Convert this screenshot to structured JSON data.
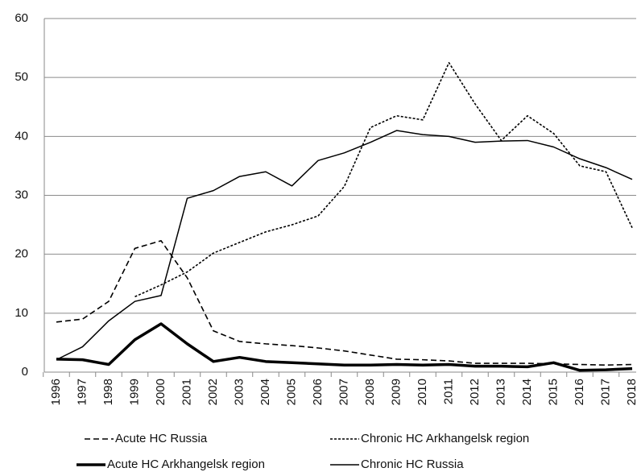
{
  "chart_data": {
    "type": "line",
    "categories": [
      "1996",
      "1997",
      "1998",
      "1999",
      "2000",
      "2001",
      "2002",
      "2003",
      "2004",
      "2005",
      "2006",
      "2007",
      "2008",
      "2009",
      "2010",
      "2011",
      "2012",
      "2013",
      "2014",
      "2015",
      "2016",
      "2017",
      "2018"
    ],
    "series": [
      {
        "name": "Acute HC Russia",
        "color": "#000000",
        "style": "dashed",
        "values": [
          8.5,
          9,
          12,
          21,
          22.3,
          16,
          7,
          5.2,
          4.8,
          4.5,
          4.1,
          3.6,
          2.9,
          2.2,
          2.1,
          1.9,
          1.5,
          1.5,
          1.5,
          1.4,
          1.3,
          1.2,
          1.3
        ]
      },
      {
        "name": "Chronic HC Arkhangelsk region",
        "color": "#000000",
        "style": "dotted",
        "values": [
          null,
          null,
          null,
          12.8,
          14.8,
          17,
          20.2,
          22,
          23.8,
          25,
          26.5,
          31.5,
          41.5,
          43.5,
          42.8,
          52.5,
          45.5,
          39.3,
          43.5,
          40.5,
          35,
          34,
          24.5
        ]
      },
      {
        "name": "Acute HC Arkhangelsk region",
        "color": "#000000",
        "style": "thick",
        "values": [
          2.2,
          2.1,
          1.3,
          5.5,
          8.2,
          4.8,
          1.8,
          2.5,
          1.8,
          1.6,
          1.4,
          1.2,
          1.2,
          1.3,
          1.2,
          1.3,
          1.0,
          1.0,
          0.9,
          1.6,
          0.3,
          0.4,
          0.6
        ]
      },
      {
        "name": "Chronic HC Russia",
        "color": "#000000",
        "style": "thin",
        "values": [
          2.1,
          4.3,
          8.7,
          12,
          13,
          29.5,
          30.8,
          33.2,
          34,
          31.6,
          35.9,
          37.2,
          39,
          41,
          40.3,
          40,
          39,
          39.2,
          39.3,
          38.2,
          36.2,
          34.7,
          32.7
        ]
      }
    ],
    "ylim": [
      0,
      60
    ],
    "yticks": [
      0,
      10,
      20,
      30,
      40,
      50,
      60
    ],
    "grid": true,
    "legend": "bottom"
  }
}
